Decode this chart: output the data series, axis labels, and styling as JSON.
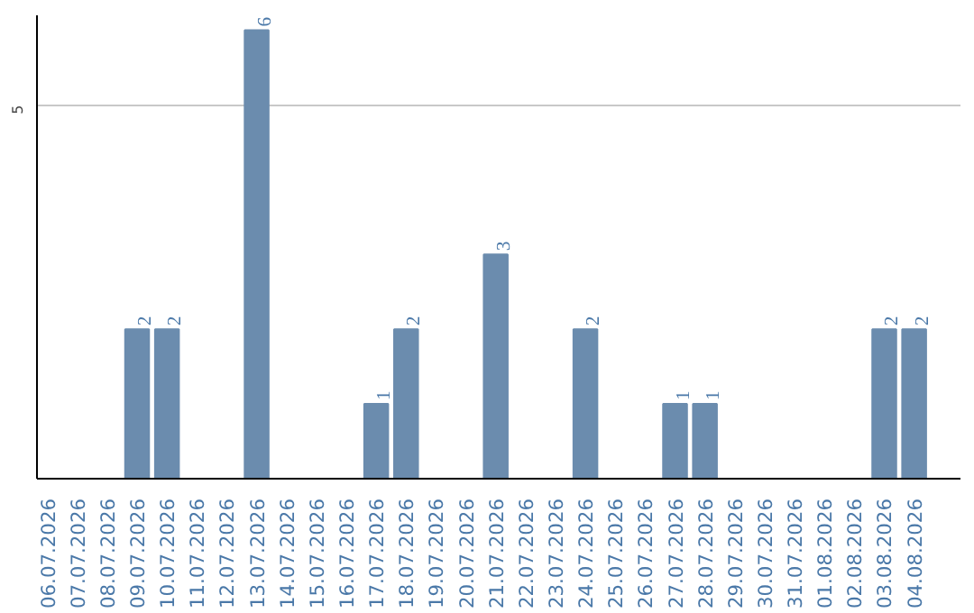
{
  "chart_data": {
    "type": "bar",
    "categories": [
      "06.07.2026",
      "07.07.2026",
      "08.07.2026",
      "09.07.2026",
      "10.07.2026",
      "11.07.2026",
      "12.07.2026",
      "13.07.2026",
      "14.07.2026",
      "15.07.2026",
      "16.07.2026",
      "17.07.2026",
      "18.07.2026",
      "19.07.2026",
      "20.07.2026",
      "21.07.2026",
      "22.07.2026",
      "23.07.2026",
      "24.07.2026",
      "25.07.2026",
      "26.07.2026",
      "27.07.2026",
      "28.07.2026",
      "29.07.2026",
      "30.07.2026",
      "31.07.2026",
      "01.08.2026",
      "02.08.2026",
      "03.08.2026",
      "04.08.2026"
    ],
    "values": [
      0,
      0,
      0,
      2,
      2,
      0,
      0,
      6,
      0,
      0,
      0,
      1,
      2,
      0,
      0,
      3,
      0,
      0,
      2,
      0,
      0,
      1,
      1,
      0,
      0,
      0,
      0,
      0,
      2,
      2
    ],
    "value_labels": [
      null,
      null,
      null,
      "2",
      "2",
      null,
      null,
      "6",
      null,
      null,
      null,
      "1",
      "2",
      null,
      null,
      "3",
      null,
      null,
      "2",
      null,
      null,
      "1",
      "1",
      null,
      null,
      null,
      null,
      null,
      "2",
      "2"
    ],
    "color": "#6b8cae",
    "ylim": [
      0,
      6.2
    ],
    "yticks": [
      5
    ],
    "grid": "y"
  }
}
